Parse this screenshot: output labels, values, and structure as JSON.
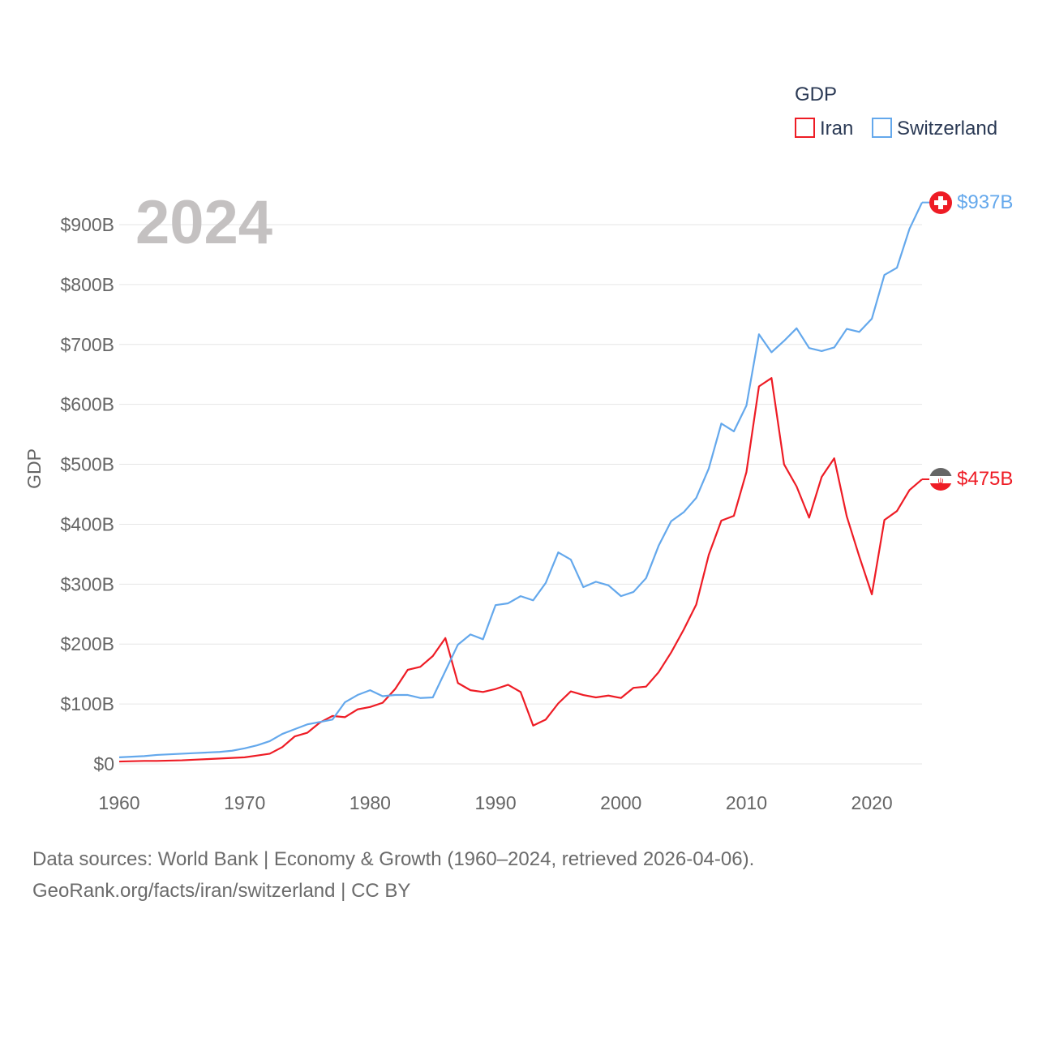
{
  "chart_data": {
    "type": "line",
    "title": "GDP",
    "ylabel": "GDP",
    "xlabel": "",
    "year_label": "2024",
    "legend_placement": "top-right",
    "ylim": [
      0,
      900
    ],
    "xlim": [
      1960,
      2024
    ],
    "grid": true,
    "y_ticks": [
      0,
      100,
      200,
      300,
      400,
      500,
      600,
      700,
      800,
      900
    ],
    "y_tick_labels": [
      "$0",
      "$100B",
      "$200B",
      "$300B",
      "$400B",
      "$500B",
      "$600B",
      "$700B",
      "$800B",
      "$900B"
    ],
    "x_ticks": [
      1960,
      1970,
      1980,
      1990,
      2000,
      2010,
      2020
    ],
    "x_tick_labels": [
      "1960",
      "1970",
      "1980",
      "1990",
      "2000",
      "2010",
      "2020"
    ],
    "x": [
      1960,
      1961,
      1962,
      1963,
      1964,
      1965,
      1966,
      1967,
      1968,
      1969,
      1970,
      1971,
      1972,
      1973,
      1974,
      1975,
      1976,
      1977,
      1978,
      1979,
      1980,
      1981,
      1982,
      1983,
      1984,
      1985,
      1986,
      1987,
      1988,
      1989,
      1990,
      1991,
      1992,
      1993,
      1994,
      1995,
      1996,
      1997,
      1998,
      1999,
      2000,
      2001,
      2002,
      2003,
      2004,
      2005,
      2006,
      2007,
      2008,
      2009,
      2010,
      2011,
      2012,
      2013,
      2014,
      2015,
      2016,
      2017,
      2018,
      2019,
      2020,
      2021,
      2022,
      2023,
      2024
    ],
    "series": [
      {
        "name": "Iran",
        "color": "#ee1c25",
        "end_label": "$475B",
        "flag": "iran-flag",
        "values": [
          4,
          4.5,
          5,
          5,
          5.5,
          6,
          7,
          8,
          9,
          10,
          11,
          14,
          17,
          28,
          46,
          52,
          69,
          80,
          78,
          91,
          95,
          102,
          125,
          157,
          162,
          180,
          210,
          135,
          123,
          120,
          125,
          132,
          120,
          64,
          74,
          101,
          121,
          115,
          111,
          114,
          110,
          127,
          129,
          153,
          186,
          224,
          266,
          349,
          406,
          414,
          487,
          630,
          644,
          500,
          463,
          411,
          479,
          510,
          413,
          346,
          283,
          407,
          422,
          457,
          475
        ]
      },
      {
        "name": "Switzerland",
        "color": "#64a8ec",
        "end_label": "$937B",
        "flag": "switzerland-flag",
        "values": [
          11,
          12,
          13,
          15,
          16,
          17,
          18,
          19,
          20,
          22,
          26,
          31,
          38,
          50,
          58,
          66,
          70,
          74,
          103,
          115,
          123,
          113,
          115,
          115,
          110,
          111,
          155,
          199,
          216,
          208,
          265,
          268,
          280,
          273,
          302,
          353,
          341,
          295,
          304,
          298,
          280,
          287,
          310,
          364,
          405,
          420,
          444,
          493,
          568,
          555,
          598,
          717,
          687,
          706,
          727,
          694,
          689,
          695,
          726,
          721,
          743,
          816,
          828,
          893,
          937
        ]
      }
    ]
  },
  "footer": {
    "line1": "Data sources: World Bank | Economy & Growth (1960–2024, retrieved 2026-04-06).",
    "line2": "GeoRank.org/facts/iran/switzerland | CC BY"
  }
}
